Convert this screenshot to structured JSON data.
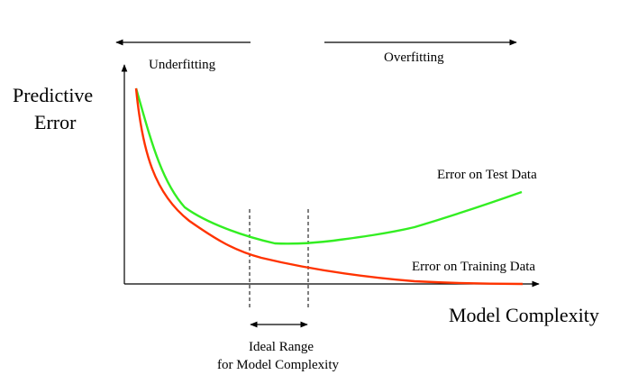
{
  "labels": {
    "underfitting": "Underfitting",
    "overfitting": "Overfitting",
    "y_axis_line1": "Predictive",
    "y_axis_line2": "Error",
    "x_axis": "Model Complexity",
    "test_curve": "Error on Test Data",
    "training_curve": "Error on Training Data",
    "ideal_line1": "Ideal Range",
    "ideal_line2": "for Model Complexity"
  },
  "colors": {
    "test_curve": "#33ee22",
    "training_curve": "#ff3300",
    "axes": "#000000"
  }
}
